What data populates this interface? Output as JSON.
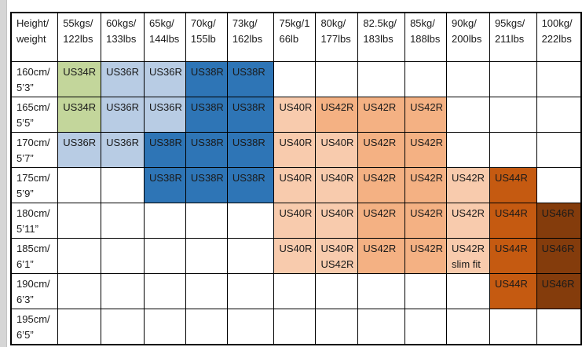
{
  "colors": {
    "green": "#c3d69b",
    "lightblue": "#b8cce4",
    "blue": "#2e75b6",
    "peach": "#f8cbad",
    "orange": "#f4b183",
    "darkorange": "#c55a11",
    "brown": "#843c0c",
    "white": "#ffffff"
  },
  "table": {
    "corner_header": [
      "Height/",
      "weight"
    ],
    "column_headers": [
      [
        "55kgs/",
        "122lbs"
      ],
      [
        "60kgs/",
        "133lbs"
      ],
      [
        "65kg/",
        "144lbs"
      ],
      [
        "70kg/",
        "155lb"
      ],
      [
        "73kg/",
        "162lbs"
      ],
      [
        "75kg/1",
        "66lb"
      ],
      [
        "80kg/",
        "177lbs"
      ],
      [
        "82.5kg/",
        "183lbs"
      ],
      [
        "85kg/",
        "188lbs"
      ],
      [
        "90kg/",
        "200lbs"
      ],
      [
        "95kgs/",
        "211lbs"
      ],
      [
        "100kg/",
        "222lbs"
      ]
    ],
    "rows": [
      {
        "label": [
          "160cm/",
          "5’3”"
        ],
        "cells": [
          {
            "lines": [
              "US34R"
            ],
            "color": "green"
          },
          {
            "lines": [
              "US36R"
            ],
            "color": "lightblue"
          },
          {
            "lines": [
              "US36R"
            ],
            "color": "lightblue"
          },
          {
            "lines": [
              "US38R"
            ],
            "color": "blue"
          },
          {
            "lines": [
              "US38R"
            ],
            "color": "blue"
          },
          {
            "lines": [],
            "color": "white"
          },
          {
            "lines": [],
            "color": "white"
          },
          {
            "lines": [],
            "color": "white"
          },
          {
            "lines": [],
            "color": "white"
          },
          {
            "lines": [],
            "color": "white"
          },
          {
            "lines": [],
            "color": "white"
          },
          {
            "lines": [],
            "color": "white"
          }
        ]
      },
      {
        "label": [
          "165cm/",
          "5’5”"
        ],
        "cells": [
          {
            "lines": [
              "US34R"
            ],
            "color": "green"
          },
          {
            "lines": [
              "US36R"
            ],
            "color": "lightblue"
          },
          {
            "lines": [
              "US36R"
            ],
            "color": "lightblue"
          },
          {
            "lines": [
              "US38R"
            ],
            "color": "blue"
          },
          {
            "lines": [
              "US38R"
            ],
            "color": "blue"
          },
          {
            "lines": [
              "US40R"
            ],
            "color": "peach"
          },
          {
            "lines": [
              "US42R"
            ],
            "color": "orange"
          },
          {
            "lines": [
              "US42R"
            ],
            "color": "orange"
          },
          {
            "lines": [
              "US42R"
            ],
            "color": "orange"
          },
          {
            "lines": [],
            "color": "white"
          },
          {
            "lines": [],
            "color": "white"
          },
          {
            "lines": [],
            "color": "white"
          }
        ]
      },
      {
        "label": [
          "170cm/",
          "5’7”"
        ],
        "cells": [
          {
            "lines": [
              "US36R"
            ],
            "color": "lightblue"
          },
          {
            "lines": [
              "US36R"
            ],
            "color": "lightblue"
          },
          {
            "lines": [
              "US38R"
            ],
            "color": "blue"
          },
          {
            "lines": [
              "US38R"
            ],
            "color": "blue"
          },
          {
            "lines": [
              "US38R"
            ],
            "color": "blue"
          },
          {
            "lines": [
              "US40R"
            ],
            "color": "peach"
          },
          {
            "lines": [
              "US40R"
            ],
            "color": "peach"
          },
          {
            "lines": [
              "US42R"
            ],
            "color": "orange"
          },
          {
            "lines": [
              "US42R"
            ],
            "color": "orange"
          },
          {
            "lines": [],
            "color": "white"
          },
          {
            "lines": [],
            "color": "white"
          },
          {
            "lines": [],
            "color": "white"
          }
        ]
      },
      {
        "label": [
          "175cm/",
          "5’9”"
        ],
        "cells": [
          {
            "lines": [],
            "color": "white"
          },
          {
            "lines": [],
            "color": "white"
          },
          {
            "lines": [
              "US38R"
            ],
            "color": "blue"
          },
          {
            "lines": [
              "US38R"
            ],
            "color": "blue"
          },
          {
            "lines": [
              "US38R"
            ],
            "color": "blue"
          },
          {
            "lines": [
              "US40R"
            ],
            "color": "peach"
          },
          {
            "lines": [
              "US40R"
            ],
            "color": "peach"
          },
          {
            "lines": [
              "US42R"
            ],
            "color": "orange"
          },
          {
            "lines": [
              "US42R"
            ],
            "color": "orange"
          },
          {
            "lines": [
              "US42R"
            ],
            "color": "peach"
          },
          {
            "lines": [
              "US44R"
            ],
            "color": "darkorange"
          },
          {
            "lines": [],
            "color": "white"
          }
        ]
      },
      {
        "label": [
          "180cm/",
          "5’11”"
        ],
        "cells": [
          {
            "lines": [],
            "color": "white"
          },
          {
            "lines": [],
            "color": "white"
          },
          {
            "lines": [],
            "color": "white"
          },
          {
            "lines": [],
            "color": "white"
          },
          {
            "lines": [],
            "color": "white"
          },
          {
            "lines": [
              "US40R"
            ],
            "color": "peach"
          },
          {
            "lines": [
              "US40R"
            ],
            "color": "peach"
          },
          {
            "lines": [
              "US42R"
            ],
            "color": "orange"
          },
          {
            "lines": [
              "US42R"
            ],
            "color": "orange"
          },
          {
            "lines": [
              "US42R"
            ],
            "color": "peach"
          },
          {
            "lines": [
              "US44R"
            ],
            "color": "darkorange"
          },
          {
            "lines": [
              "US46R"
            ],
            "color": "brown"
          }
        ]
      },
      {
        "label": [
          "185cm/",
          "6’1”"
        ],
        "cells": [
          {
            "lines": [],
            "color": "white"
          },
          {
            "lines": [],
            "color": "white"
          },
          {
            "lines": [],
            "color": "white"
          },
          {
            "lines": [],
            "color": "white"
          },
          {
            "lines": [],
            "color": "white"
          },
          {
            "lines": [
              "US40R"
            ],
            "color": "peach"
          },
          {
            "lines": [
              "US40R",
              "US42R"
            ],
            "color": "peach"
          },
          {
            "lines": [
              "US42R"
            ],
            "color": "orange"
          },
          {
            "lines": [
              "US42R"
            ],
            "color": "orange"
          },
          {
            "lines": [
              "US42R",
              "slim fit"
            ],
            "color": "peach"
          },
          {
            "lines": [
              "US44R"
            ],
            "color": "darkorange"
          },
          {
            "lines": [
              "US46R"
            ],
            "color": "brown"
          }
        ]
      },
      {
        "label": [
          "190cm/",
          "6’3”"
        ],
        "cells": [
          {
            "lines": [],
            "color": "white"
          },
          {
            "lines": [],
            "color": "white"
          },
          {
            "lines": [],
            "color": "white"
          },
          {
            "lines": [],
            "color": "white"
          },
          {
            "lines": [],
            "color": "white"
          },
          {
            "lines": [],
            "color": "white"
          },
          {
            "lines": [],
            "color": "white"
          },
          {
            "lines": [],
            "color": "white"
          },
          {
            "lines": [],
            "color": "white"
          },
          {
            "lines": [],
            "color": "white"
          },
          {
            "lines": [
              "US44R"
            ],
            "color": "darkorange"
          },
          {
            "lines": [
              "US46R"
            ],
            "color": "brown"
          }
        ]
      },
      {
        "label": [
          "195cm/",
          "6’5”"
        ],
        "cells": [
          {
            "lines": [],
            "color": "white"
          },
          {
            "lines": [],
            "color": "white"
          },
          {
            "lines": [],
            "color": "white"
          },
          {
            "lines": [],
            "color": "white"
          },
          {
            "lines": [],
            "color": "white"
          },
          {
            "lines": [],
            "color": "white"
          },
          {
            "lines": [],
            "color": "white"
          },
          {
            "lines": [],
            "color": "white"
          },
          {
            "lines": [],
            "color": "white"
          },
          {
            "lines": [],
            "color": "white"
          },
          {
            "lines": [],
            "color": "white"
          },
          {
            "lines": [],
            "color": "white"
          }
        ]
      }
    ]
  }
}
